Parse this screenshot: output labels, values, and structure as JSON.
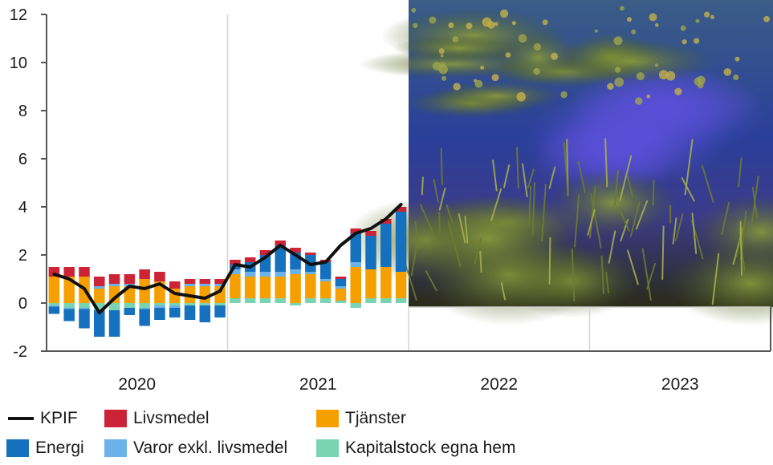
{
  "chart_data": {
    "type": "bar",
    "subtype": "stacked-bar-with-line",
    "ylim": [
      -2,
      12
    ],
    "yticks": [
      "-2",
      "0",
      "2",
      "4",
      "6",
      "8",
      "10",
      "12"
    ],
    "x_year_labels": [
      "2020",
      "2021",
      "2022",
      "2023"
    ],
    "grid": "vertical lines between years",
    "legend_placement": "bottom",
    "image_overlay": "photograph covering the 2022–2023 upper area (underwater plants)",
    "colors": {
      "KPIF": "#111111",
      "Livsmedel": "#cc2336",
      "Tjänster": "#f5a000",
      "Energi": "#1570be",
      "Varor exkl. livsmedel": "#6ab2e7",
      "Kapitalstock egna hem": "#79d4b3"
    },
    "months": [
      "2020-01",
      "2020-02",
      "2020-03",
      "2020-04",
      "2020-05",
      "2020-06",
      "2020-07",
      "2020-08",
      "2020-09",
      "2020-10",
      "2020-11",
      "2020-12",
      "2021-01",
      "2021-02",
      "2021-03",
      "2021-04",
      "2021-05",
      "2021-06",
      "2021-07",
      "2021-08",
      "2021-09",
      "2021-10",
      "2021-11",
      "2021-12"
    ],
    "series": [
      {
        "name": "Kapitalstock egna hem",
        "values": [
          -0.1,
          -0.2,
          -0.2,
          -0.3,
          -0.3,
          -0.2,
          -0.2,
          -0.1,
          -0.1,
          -0.1,
          -0.1,
          -0.1,
          0.2,
          0.2,
          0.2,
          0.2,
          -0.1,
          0.2,
          0.2,
          0.1,
          -0.2,
          0.2,
          0.2,
          0.2
        ]
      },
      {
        "name": "Tjänster",
        "values": [
          1.1,
          1.1,
          1.1,
          0.6,
          0.7,
          0.7,
          1.0,
          0.9,
          0.6,
          0.7,
          0.7,
          0.7,
          1.0,
          0.9,
          0.9,
          0.9,
          1.2,
          1.0,
          0.7,
          0.5,
          1.5,
          1.2,
          1.3,
          1.1
        ]
      },
      {
        "name": "Varor exkl. livsmedel",
        "values": [
          -0.05,
          -0.05,
          -0.05,
          0.1,
          0.1,
          0.1,
          -0.05,
          -0.1,
          -0.1,
          0.1,
          0.1,
          0.1,
          0.2,
          0.2,
          0.2,
          0.2,
          0.2,
          0.1,
          0.1,
          0.1,
          0.2,
          0.0,
          0.0,
          0.0
        ]
      },
      {
        "name": "Energi",
        "values": [
          -0.3,
          -0.5,
          -0.8,
          -1.1,
          -1.1,
          -0.3,
          -0.7,
          -0.5,
          -0.4,
          -0.6,
          -0.7,
          -0.5,
          0.2,
          0.4,
          0.7,
          1.1,
          0.7,
          0.7,
          0.7,
          0.3,
          1.2,
          1.4,
          1.8,
          2.5
        ]
      },
      {
        "name": "Livsmedel",
        "values": [
          0.4,
          0.4,
          0.4,
          0.4,
          0.4,
          0.4,
          0.4,
          0.4,
          0.3,
          0.2,
          0.2,
          0.2,
          0.2,
          0.2,
          0.2,
          0.2,
          0.2,
          0.1,
          0.1,
          0.1,
          0.2,
          0.2,
          0.2,
          0.2
        ]
      },
      {
        "name": "KPIF",
        "kind": "line",
        "values": [
          1.2,
          1.0,
          0.6,
          -0.4,
          0.2,
          0.7,
          0.6,
          0.8,
          0.4,
          0.3,
          0.2,
          0.5,
          1.6,
          1.5,
          1.9,
          2.4,
          2.0,
          1.6,
          1.7,
          2.4,
          2.9,
          3.1,
          3.5,
          4.1
        ]
      }
    ]
  },
  "legend": [
    {
      "id": "kpif",
      "label": "KPIF",
      "kind": "line",
      "color": "#111111"
    },
    {
      "id": "livsmedel",
      "label": "Livsmedel",
      "kind": "box",
      "color": "#cc2336"
    },
    {
      "id": "tjanster",
      "label": "Tjänster",
      "kind": "box",
      "color": "#f5a000"
    },
    {
      "id": "energi",
      "label": "Energi",
      "kind": "box",
      "color": "#1570be"
    },
    {
      "id": "varor",
      "label": "Varor exkl. livsmedel",
      "kind": "box",
      "color": "#6ab2e7"
    },
    {
      "id": "kapitalstock",
      "label": "Kapitalstock egna hem",
      "kind": "box",
      "color": "#79d4b3"
    }
  ]
}
